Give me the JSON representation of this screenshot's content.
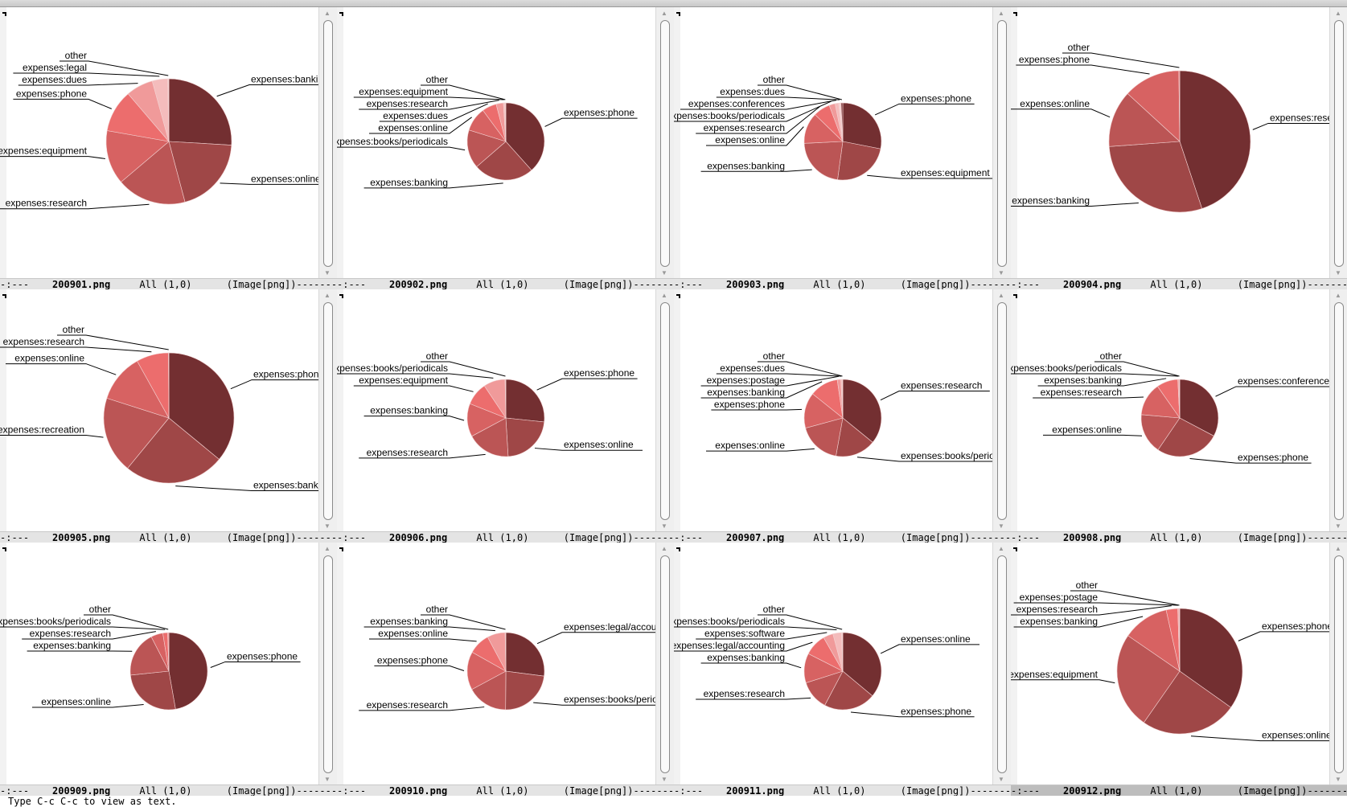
{
  "mode_line": {
    "prefix": "-:---",
    "position": "All (1,0)",
    "mode": "(Image[png])",
    "fill": "------------"
  },
  "panes": [
    {
      "file": "200901.png"
    },
    {
      "file": "200902.png"
    },
    {
      "file": "200903.png"
    },
    {
      "file": "200904.png"
    },
    {
      "file": "200905.png"
    },
    {
      "file": "200906.png"
    },
    {
      "file": "200907.png"
    },
    {
      "file": "200908.png"
    },
    {
      "file": "200909.png"
    },
    {
      "file": "200910.png"
    },
    {
      "file": "200911.png"
    },
    {
      "file": "200912.png"
    }
  ],
  "active_pane": 11,
  "echo_area": "Type C-c C-c to view as text.",
  "colors": [
    "#732f31",
    "#9f4747",
    "#bb5555",
    "#d76262",
    "#ec6d6d",
    "#f09a9a",
    "#f4bcbc",
    "#f7d3d3"
  ],
  "chart_data": [
    {
      "type": "pie",
      "labels": [
        "expenses:banking",
        "expenses:online",
        "expenses:research",
        "expenses:equipment",
        "expenses:phone",
        "expenses:dues",
        "expenses:legal",
        "other"
      ],
      "values": [
        26,
        20,
        18,
        14,
        11,
        7,
        4,
        0.3
      ]
    },
    {
      "type": "pie",
      "labels": [
        "expenses:phone",
        "expenses:banking",
        "expenses:books/periodicals",
        "expenses:online",
        "expenses:dues",
        "expenses:research",
        "expenses:equipment",
        "other"
      ],
      "values": [
        38,
        25,
        16,
        10,
        6,
        3,
        0.6,
        0.4
      ]
    },
    {
      "type": "pie",
      "labels": [
        "expenses:phone",
        "expenses:equipment",
        "expenses:banking",
        "expenses:online",
        "expenses:research",
        "expenses:books/periodicals",
        "expenses:conferences",
        "expenses:dues",
        "other"
      ],
      "values": [
        28,
        24,
        22,
        13,
        7,
        2.5,
        1.5,
        1,
        0.7
      ]
    },
    {
      "type": "pie",
      "labels": [
        "expenses:research",
        "expenses:banking",
        "expenses:online",
        "expenses:phone",
        "other"
      ],
      "values": [
        45,
        29,
        13,
        13,
        0.2
      ]
    },
    {
      "type": "pie",
      "labels": [
        "expenses:phone",
        "expenses:banking",
        "expenses:recreation",
        "expenses:online",
        "expenses:research",
        "other"
      ],
      "values": [
        36,
        25,
        19,
        12,
        8,
        0.1
      ]
    },
    {
      "type": "pie",
      "labels": [
        "expenses:phone",
        "expenses:online",
        "expenses:research",
        "expenses:banking",
        "expenses:equipment",
        "expenses:books/periodicals",
        "other"
      ],
      "values": [
        25,
        21,
        17,
        13,
        9,
        8.5,
        0.3
      ]
    },
    {
      "type": "pie",
      "labels": [
        "expenses:research",
        "expenses:books/periodicals",
        "expenses:online",
        "expenses:phone",
        "expenses:banking",
        "expenses:postage",
        "expenses:dues",
        "other"
      ],
      "values": [
        36,
        17,
        18,
        15,
        12,
        1.5,
        0.5,
        0.3
      ]
    },
    {
      "type": "pie",
      "labels": [
        "expenses:conferences",
        "expenses:phone",
        "expenses:online",
        "expenses:research",
        "expenses:banking",
        "expenses:books/periodicals",
        "other"
      ],
      "values": [
        33,
        27,
        17,
        14,
        9,
        0.5,
        0.3
      ]
    },
    {
      "type": "pie",
      "labels": [
        "expenses:phone",
        "expenses:online",
        "expenses:banking",
        "expenses:research",
        "expenses:books/periodicals",
        "other"
      ],
      "values": [
        47,
        26,
        19,
        5,
        2,
        0.5
      ]
    },
    {
      "type": "pie",
      "labels": [
        "expenses:legal/accounting",
        "expenses:books/periodicals",
        "expenses:research",
        "expenses:phone",
        "expenses:online",
        "expenses:banking",
        "other"
      ],
      "values": [
        27,
        23,
        17,
        16,
        9,
        7.5,
        0.3
      ]
    },
    {
      "type": "pie",
      "labels": [
        "expenses:online",
        "expenses:phone",
        "expenses:research",
        "expenses:banking",
        "expenses:legal/accounting",
        "expenses:software",
        "expenses:books/periodicals",
        "other"
      ],
      "values": [
        35,
        21,
        12,
        12,
        9,
        4,
        3.5,
        0.5
      ]
    },
    {
      "type": "pie",
      "labels": [
        "expenses:phone",
        "expenses:online",
        "expenses:equipment",
        "expenses:banking",
        "expenses:research",
        "expenses:postage",
        "other"
      ],
      "values": [
        35,
        25,
        25,
        12,
        3,
        0.3,
        0.2
      ]
    }
  ]
}
